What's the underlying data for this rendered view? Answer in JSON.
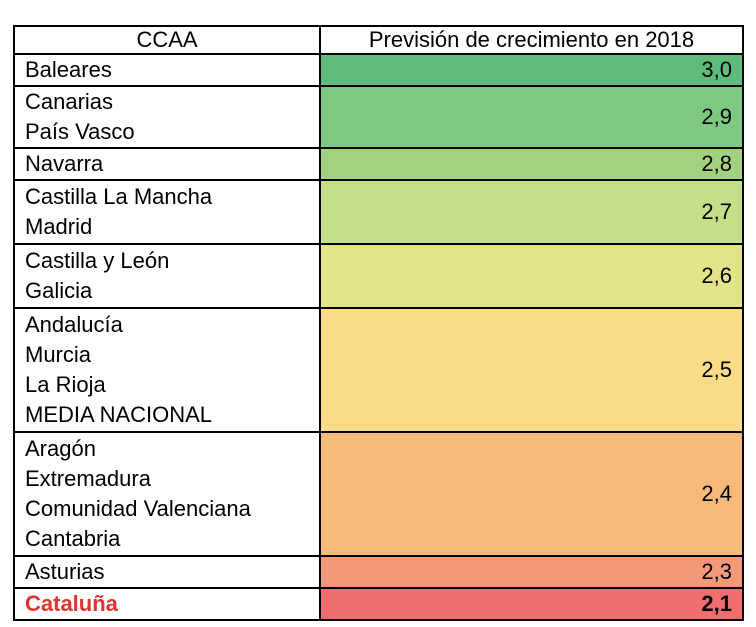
{
  "table": {
    "headers": [
      "CCAA",
      "Previsión de crecimiento en 2018"
    ],
    "rows": [
      {
        "regions": [
          "Baleares"
        ],
        "value": "3,0",
        "color": "#5fbb79",
        "height": 30
      },
      {
        "regions": [
          "Canarias",
          "País Vasco"
        ],
        "value": "2,9",
        "color": "#7ec882",
        "height": 60
      },
      {
        "regions": [
          "Navarra"
        ],
        "value": "2,8",
        "color": "#a2d27f",
        "height": 30
      },
      {
        "regions": [
          "Castilla La Mancha",
          "Madrid"
        ],
        "value": "2,7",
        "color": "#c4df87",
        "height": 62
      },
      {
        "regions": [
          "Castilla y León",
          "Galicia"
        ],
        "value": "2,6",
        "color": "#e3e487",
        "height": 62
      },
      {
        "regions": [
          "Andalucía",
          "Murcia",
          "La Rioja",
          "MEDIA NACIONAL"
        ],
        "value": "2,5",
        "color": "#fadc87",
        "height": 122
      },
      {
        "regions": [
          "Aragón",
          "Extremadura",
          "Comunidad Valenciana",
          "Cantabria"
        ],
        "value": "2,4",
        "color": "#f6bb7a",
        "height": 122
      },
      {
        "regions": [
          "Asturias"
        ],
        "value": "2,3",
        "color": "#f4987a",
        "height": 30
      },
      {
        "regions": [
          "Cataluña"
        ],
        "value": "2,1",
        "color": "#f06d70",
        "height": 30,
        "highlight": true
      }
    ]
  }
}
